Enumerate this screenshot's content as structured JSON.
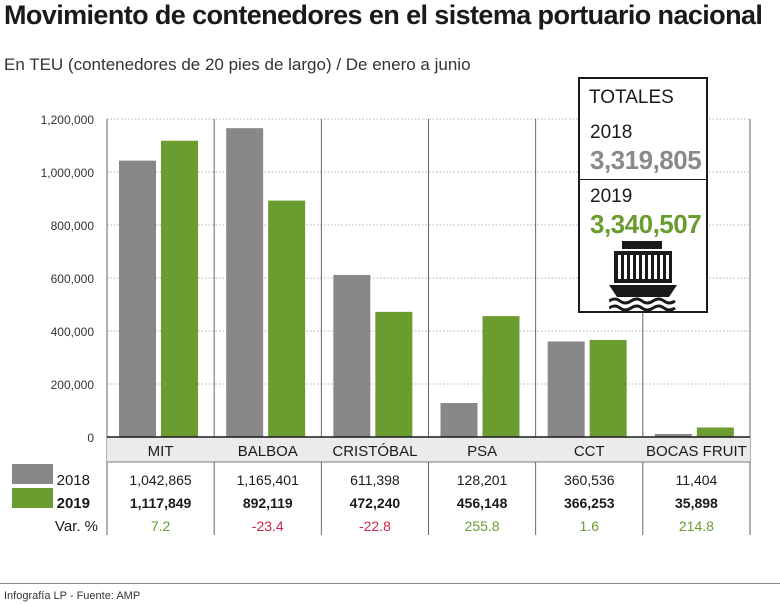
{
  "header": {
    "title": "Movimiento de contenedores en el sistema portuario nacional",
    "subtitle": "En TEU (contenedores de 20 pies de largo) / De enero a junio"
  },
  "totals": {
    "label": "TOTALES",
    "year1": "2018",
    "value1": "3,319,805",
    "year2": "2019",
    "value2": "3,340,507",
    "icon": "cargo-ship-icon"
  },
  "colors": {
    "s2018": "#88888b",
    "s2019": "#6a9c2f",
    "negative": "#c8264a",
    "positive": "#6a9c2f"
  },
  "chart_data": {
    "type": "bar",
    "categories": [
      "MIT",
      "BALBOA",
      "CRISTÓBAL",
      "PSA",
      "CCT",
      "BOCAS FRUIT"
    ],
    "series": [
      {
        "name": "2018",
        "values": [
          1042865,
          1165401,
          611398,
          128201,
          360536,
          11404
        ],
        "labels": [
          "1,042,865",
          "1,165,401",
          "611,398",
          "128,201",
          "360,536",
          "11,404"
        ]
      },
      {
        "name": "2019",
        "values": [
          1117849,
          892119,
          472240,
          456148,
          366253,
          35898
        ],
        "labels": [
          "1,117,849",
          "892,119",
          "472,240",
          "456,148",
          "366,253",
          "35,898"
        ]
      }
    ],
    "variation_label": "Var. %",
    "variation": [
      "7.2",
      "-23.4",
      "-22.8",
      "255.8",
      "1.6",
      "214.8"
    ],
    "yticks": [
      0,
      200000,
      400000,
      600000,
      800000,
      1000000,
      1200000
    ],
    "ytick_labels": [
      "0",
      "200,000",
      "400,000",
      "600,000",
      "800,000",
      "1,000,000",
      "1,200,000"
    ],
    "ylim": [
      0,
      1200000
    ],
    "grid": true,
    "legend": "bottom-left table"
  },
  "footer": {
    "source": "Infografía LP - Fuente: AMP"
  }
}
